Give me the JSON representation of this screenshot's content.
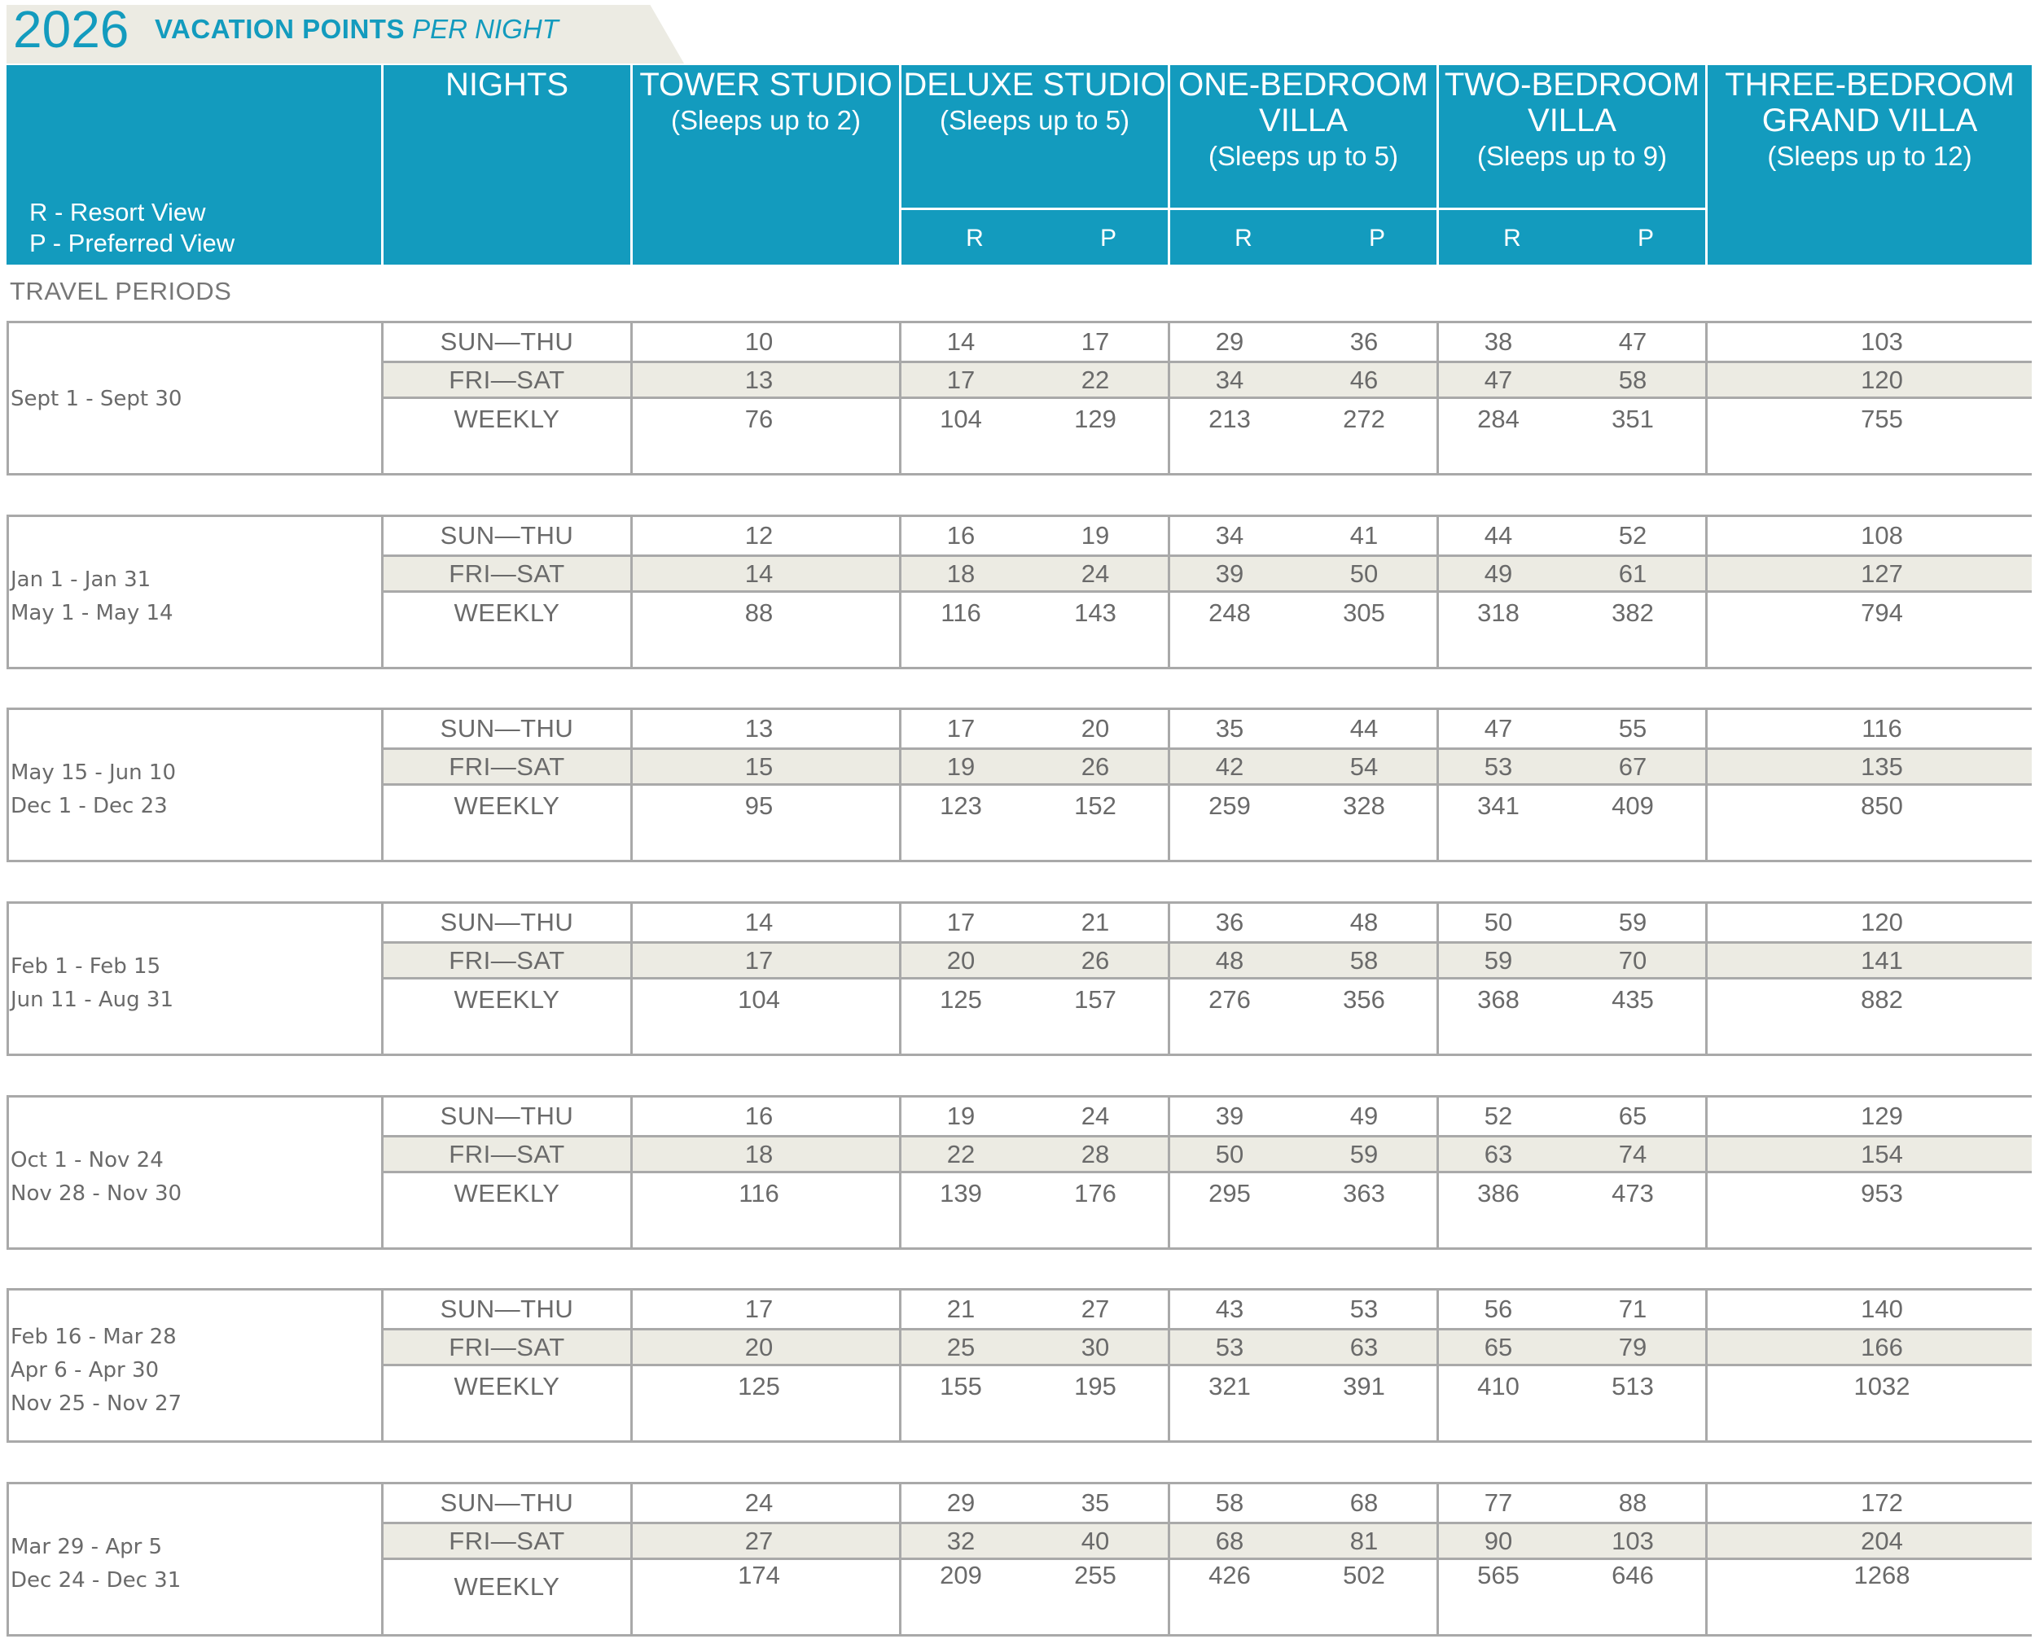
{
  "title": {
    "year": "2026",
    "main": "VACATION POINTS",
    "suffix": "PER NIGHT"
  },
  "legend": {
    "r": "R - Resort View",
    "p": "P - Preferred View"
  },
  "columns": {
    "nights": "NIGHTS",
    "tower": {
      "name": "TOWER STUDIO",
      "sleeps": "(Sleeps up to 2)"
    },
    "deluxe": {
      "name": "DELUXE STUDIO",
      "sleeps": "(Sleeps up to 5)"
    },
    "one_bed": {
      "name1": "ONE-BEDROOM",
      "name2": "VILLA",
      "sleeps": "(Sleeps up to 5)"
    },
    "two_bed": {
      "name1": "TWO-BEDROOM",
      "name2": "VILLA",
      "sleeps": "(Sleeps up to 9)"
    },
    "three_bed": {
      "name1": "THREE-BEDROOM",
      "name2": "GRAND VILLA",
      "sleeps": "(Sleeps up to 12)"
    },
    "r": "R",
    "p": "P"
  },
  "travel_periods_label": "TRAVEL PERIODS",
  "night_labels": [
    "SUN—THU",
    "FRI—SAT",
    "WEEKLY"
  ],
  "periods": [
    {
      "dates": [
        "Sept 1 - Sept 30"
      ],
      "rows": [
        [
          "10",
          "14",
          "17",
          "29",
          "36",
          "38",
          "47",
          "103"
        ],
        [
          "13",
          "17",
          "22",
          "34",
          "46",
          "47",
          "58",
          "120"
        ],
        [
          "76",
          "104",
          "129",
          "213",
          "272",
          "284",
          "351",
          "755"
        ]
      ]
    },
    {
      "dates": [
        "Jan 1 - Jan 31",
        "May 1 - May 14"
      ],
      "rows": [
        [
          "12",
          "16",
          "19",
          "34",
          "41",
          "44",
          "52",
          "108"
        ],
        [
          "14",
          "18",
          "24",
          "39",
          "50",
          "49",
          "61",
          "127"
        ],
        [
          "88",
          "116",
          "143",
          "248",
          "305",
          "318",
          "382",
          "794"
        ]
      ]
    },
    {
      "dates": [
        "May 15 - Jun 10",
        "Dec 1 - Dec 23"
      ],
      "rows": [
        [
          "13",
          "17",
          "20",
          "35",
          "44",
          "47",
          "55",
          "116"
        ],
        [
          "15",
          "19",
          "26",
          "42",
          "54",
          "53",
          "67",
          "135"
        ],
        [
          "95",
          "123",
          "152",
          "259",
          "328",
          "341",
          "409",
          "850"
        ]
      ]
    },
    {
      "dates": [
        "Feb 1 - Feb 15",
        "Jun 11 - Aug 31"
      ],
      "rows": [
        [
          "14",
          "17",
          "21",
          "36",
          "48",
          "50",
          "59",
          "120"
        ],
        [
          "17",
          "20",
          "26",
          "48",
          "58",
          "59",
          "70",
          "141"
        ],
        [
          "104",
          "125",
          "157",
          "276",
          "356",
          "368",
          "435",
          "882"
        ]
      ]
    },
    {
      "dates": [
        "Oct 1 - Nov 24",
        "Nov 28 - Nov 30"
      ],
      "rows": [
        [
          "16",
          "19",
          "24",
          "39",
          "49",
          "52",
          "65",
          "129"
        ],
        [
          "18",
          "22",
          "28",
          "50",
          "59",
          "63",
          "74",
          "154"
        ],
        [
          "116",
          "139",
          "176",
          "295",
          "363",
          "386",
          "473",
          "953"
        ]
      ]
    },
    {
      "dates": [
        "Feb 16 - Mar 28",
        "Apr 6 - Apr 30",
        "Nov 25 - Nov 27"
      ],
      "rows": [
        [
          "17",
          "21",
          "27",
          "43",
          "53",
          "56",
          "71",
          "140"
        ],
        [
          "20",
          "25",
          "30",
          "53",
          "63",
          "65",
          "79",
          "166"
        ],
        [
          "125",
          "155",
          "195",
          "321",
          "391",
          "410",
          "513",
          "1032"
        ]
      ]
    },
    {
      "dates": [
        "Mar 29 - Apr 5",
        "Dec 24 - Dec 31"
      ],
      "rows": [
        [
          "24",
          "29",
          "35",
          "58",
          "68",
          "77",
          "88",
          "172"
        ],
        [
          "27",
          "32",
          "40",
          "68",
          "81",
          "90",
          "103",
          "204"
        ],
        [
          "174",
          "209",
          "255",
          "426",
          "502",
          "565",
          "646",
          "1268"
        ]
      ]
    }
  ]
}
